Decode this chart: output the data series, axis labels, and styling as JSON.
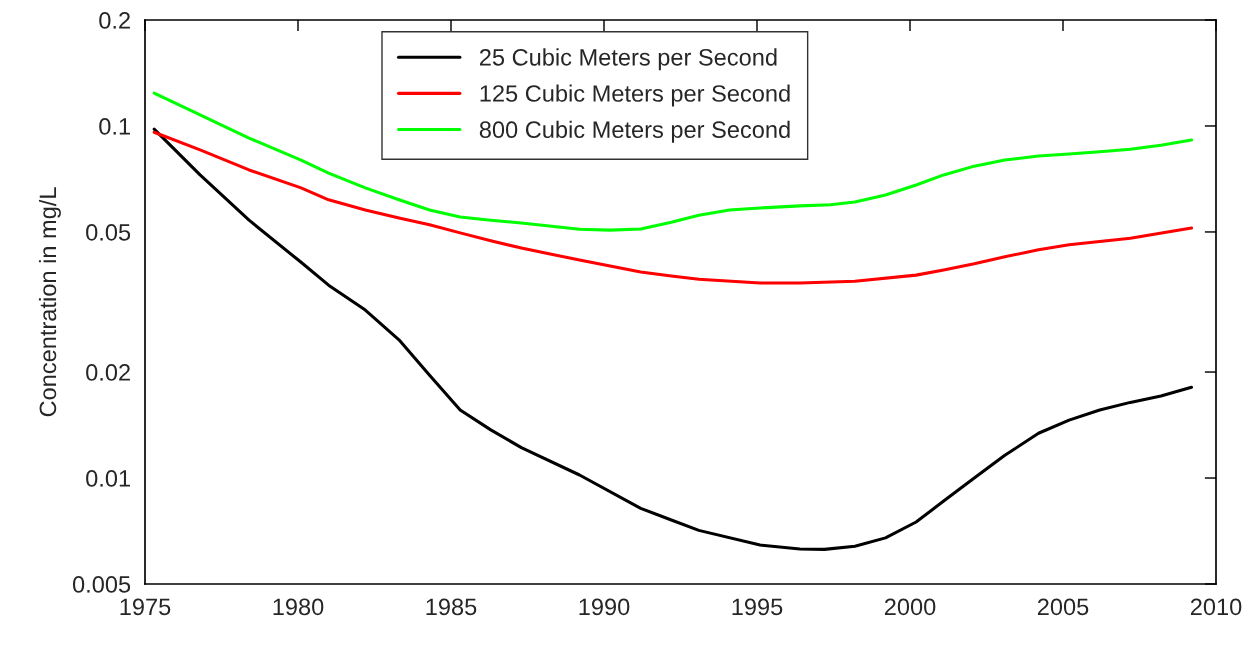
{
  "chart_data": {
    "type": "line",
    "ylabel": "Concentration in mg/L",
    "log": "y",
    "grid": false,
    "legend": "top",
    "line_style": "solid",
    "marker": "none",
    "xlim": [
      1975,
      2010
    ],
    "xticks": [
      1975,
      1980,
      1985,
      1990,
      1995,
      2000,
      2005,
      2010
    ],
    "ylim": [
      0.005,
      0.2
    ],
    "yticks": [
      0.005,
      0.01,
      0.02,
      0.05,
      0.1,
      0.2
    ],
    "series": [
      {
        "name": "25 Cubic Meters per Second",
        "color": "#000000",
        "x": [
          1975.3,
          1976.8,
          1978.4,
          1980.1,
          1981.0,
          1982.2,
          1983.3,
          1984.3,
          1985.3,
          1986.3,
          1987.3,
          1989.2,
          1991.2,
          1992.2,
          1993.1,
          1995.1,
          1996.4,
          1997.2,
          1998.2,
          1999.2,
          2000.2,
          2001.1,
          2002.1,
          2003.1,
          2004.2,
          2005.2,
          2006.2,
          2007.2,
          2008.2,
          2009.2
        ],
        "values": [
          0.098,
          0.0726,
          0.054,
          0.041,
          0.0353,
          0.03,
          0.0247,
          0.0196,
          0.0156,
          0.0137,
          0.0122,
          0.0102,
          0.0082,
          0.0076,
          0.0071,
          0.00645,
          0.00629,
          0.00627,
          0.0064,
          0.00676,
          0.0075,
          0.0086,
          0.01,
          0.0116,
          0.0134,
          0.0146,
          0.0156,
          0.0164,
          0.0171,
          0.0181
        ]
      },
      {
        "name": "125 Cubic Meters per Second",
        "color": "#ff0000",
        "x": [
          1975.3,
          1976.8,
          1978.4,
          1980.1,
          1981.0,
          1982.2,
          1983.3,
          1984.3,
          1985.3,
          1986.3,
          1987.3,
          1989.2,
          1991.2,
          1992.2,
          1993.1,
          1995.1,
          1996.4,
          1998.2,
          2000.2,
          2001.1,
          2002.1,
          2003.1,
          2004.2,
          2005.2,
          2007.2,
          2009.2
        ],
        "values": [
          0.096,
          0.0855,
          0.075,
          0.0667,
          0.0617,
          0.0577,
          0.0548,
          0.0524,
          0.0497,
          0.0472,
          0.045,
          0.0416,
          0.0385,
          0.0375,
          0.0367,
          0.0358,
          0.0358,
          0.0362,
          0.0377,
          0.039,
          0.0406,
          0.0425,
          0.0445,
          0.046,
          0.048,
          0.0513
        ]
      },
      {
        "name": "800 Cubic Meters per Second",
        "color": "#00ff00",
        "x": [
          1975.3,
          1976.8,
          1978.4,
          1980.1,
          1981.0,
          1982.2,
          1983.3,
          1984.3,
          1985.3,
          1986.3,
          1987.3,
          1989.2,
          1990.2,
          1991.2,
          1992.2,
          1993.1,
          1994.1,
          1995.1,
          1996.4,
          1997.4,
          1998.2,
          1999.2,
          2000.2,
          2001.1,
          2002.1,
          2003.1,
          2004.2,
          2005.2,
          2006.2,
          2007.2,
          2008.2,
          2009.2
        ],
        "values": [
          0.124,
          0.1075,
          0.0924,
          0.08,
          0.0735,
          0.0667,
          0.0617,
          0.0577,
          0.0551,
          0.054,
          0.053,
          0.0509,
          0.0506,
          0.051,
          0.0533,
          0.0558,
          0.0577,
          0.0585,
          0.0593,
          0.0597,
          0.0608,
          0.0637,
          0.068,
          0.0726,
          0.0769,
          0.08,
          0.0822,
          0.0833,
          0.0845,
          0.0859,
          0.0882,
          0.0912
        ]
      }
    ]
  }
}
